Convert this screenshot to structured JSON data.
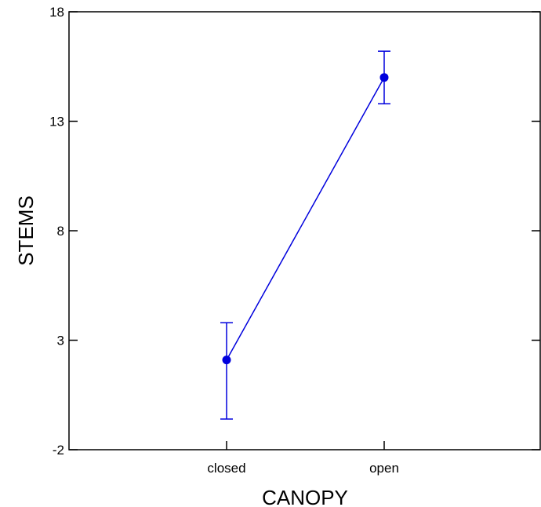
{
  "chart_data": {
    "type": "line",
    "title": "",
    "xlabel": "CANOPY",
    "ylabel": "STEMS",
    "categories": [
      "closed",
      "open"
    ],
    "ylim": [
      -2,
      18
    ],
    "yticks": [
      -2,
      3,
      8,
      13,
      18
    ],
    "grid": false,
    "legend": "none",
    "color": "#0000dd",
    "series": [
      {
        "values": [
          2.1,
          15.0
        ],
        "error_low": [
          -0.6,
          13.8
        ],
        "error_high": [
          3.8,
          16.2
        ]
      }
    ]
  }
}
